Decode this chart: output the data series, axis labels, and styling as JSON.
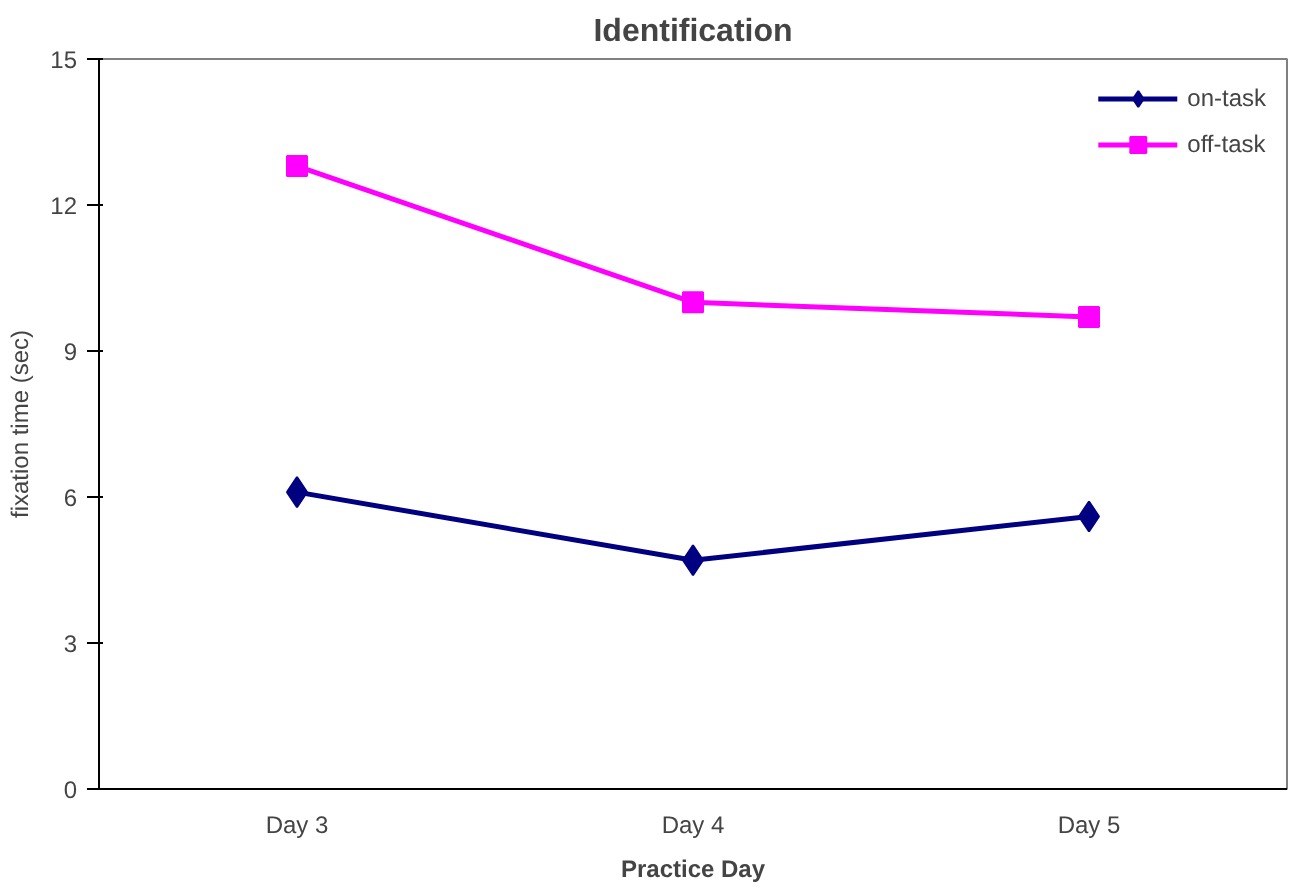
{
  "chart_data": {
    "type": "line",
    "title": "Identification",
    "xlabel": "Practice Day",
    "ylabel": "fixation time (sec)",
    "categories": [
      "Day 3",
      "Day 4",
      "Day 5"
    ],
    "series": [
      {
        "name": "on-task",
        "color": "#000080",
        "values": [
          6.1,
          4.7,
          5.6
        ],
        "marker": "diamond"
      },
      {
        "name": "off-task",
        "color": "#ff00ff",
        "values": [
          12.8,
          10.0,
          9.7
        ],
        "marker": "square"
      }
    ],
    "ylim": [
      0,
      15
    ],
    "yticks": [
      0,
      3,
      6,
      9,
      12,
      15
    ],
    "grid": false,
    "legend": "top right",
    "line_style": "solid"
  }
}
